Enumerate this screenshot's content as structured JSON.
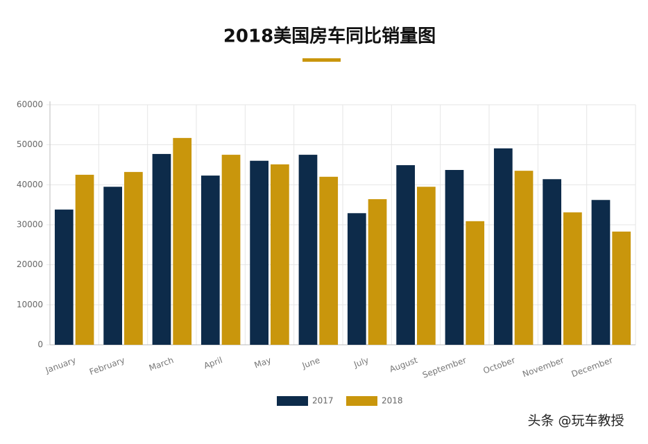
{
  "chart_data": {
    "type": "bar",
    "title": "2018美国房车同比销量图",
    "categories": [
      "January",
      "February",
      "March",
      "April",
      "May",
      "June",
      "July",
      "August",
      "September",
      "October",
      "November",
      "December"
    ],
    "series": [
      {
        "name": "2017",
        "color": "#0d2b4a",
        "values": [
          33800,
          39500,
          47700,
          42300,
          46000,
          47500,
          32900,
          44900,
          43700,
          49100,
          41400,
          36200
        ]
      },
      {
        "name": "2018",
        "color": "#c9960c",
        "values": [
          42500,
          43200,
          51700,
          47500,
          45100,
          42000,
          36400,
          39500,
          30900,
          43500,
          33100,
          28300
        ]
      }
    ],
    "ylim": [
      0,
      60000
    ],
    "yticks": [
      0,
      10000,
      20000,
      30000,
      40000,
      50000,
      60000
    ],
    "grid": true,
    "legend": "bottom",
    "watermark": "头条 @玩车教授"
  }
}
